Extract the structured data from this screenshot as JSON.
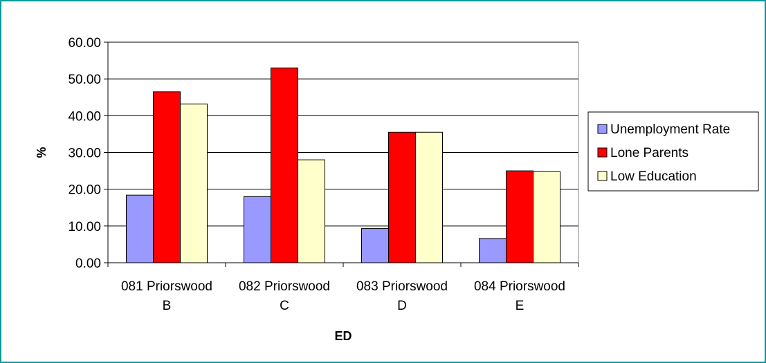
{
  "chart_data": {
    "type": "bar",
    "title": "",
    "xlabel": "ED",
    "ylabel": "%",
    "ylim": [
      0,
      60
    ],
    "yticks": [
      "0.00",
      "10.00",
      "20.00",
      "30.00",
      "40.00",
      "50.00",
      "60.00"
    ],
    "categories": [
      [
        "081 Priorswood",
        "B"
      ],
      [
        "082 Priorswood",
        "C"
      ],
      [
        "083 Priorswood",
        "D"
      ],
      [
        "084 Priorswood",
        "E"
      ]
    ],
    "series": [
      {
        "name": "Unemployment Rate",
        "color": "#9999ff",
        "values": [
          18.4,
          18.0,
          9.3,
          6.6
        ]
      },
      {
        "name": "Lone Parents",
        "color": "#ff0000",
        "values": [
          46.5,
          53.0,
          35.5,
          25.0
        ]
      },
      {
        "name": "Low Education",
        "color": "#ffffcc",
        "values": [
          43.2,
          28.0,
          35.5,
          24.8
        ]
      }
    ],
    "grid": true,
    "legend_position": "right"
  }
}
